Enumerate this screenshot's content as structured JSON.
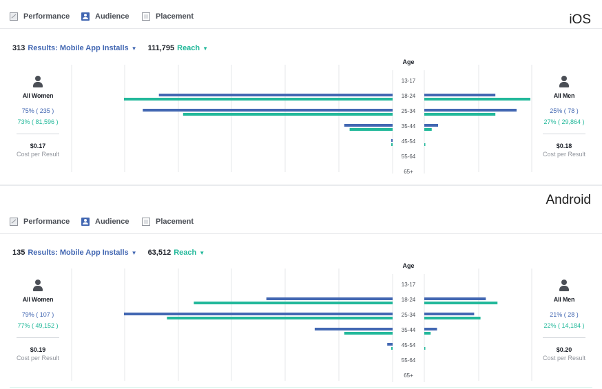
{
  "colors": {
    "results": "#4267b2",
    "reach": "#22b89a",
    "grid": "#e6e7ea"
  },
  "panels": [
    {
      "platform": "iOS",
      "tabs": [
        {
          "label": "Performance",
          "icon": "performance-icon"
        },
        {
          "label": "Audience",
          "icon": "audience-icon"
        },
        {
          "label": "Placement",
          "icon": "placement-icon"
        }
      ],
      "results_count": "313",
      "results_metric": "Results: Mobile App Installs",
      "reach_count": "111,795",
      "reach_metric": "Reach",
      "age_title": "Age",
      "age_groups": [
        "13-17",
        "18-24",
        "25-34",
        "35-44",
        "45-54",
        "55-64",
        "65+"
      ],
      "women": {
        "label": "All Women",
        "pct_results": "75% ( 235 )",
        "pct_reach": "73% ( 81,596 )",
        "cost": "$0.17",
        "cost_label": "Cost per Result"
      },
      "men": {
        "label": "All Men",
        "pct_results": "25% ( 78 )",
        "pct_reach": "27% ( 29,864 )",
        "cost": "$0.18",
        "cost_label": "Cost per Result"
      },
      "bars": {
        "women_results": [
          0,
          0.87,
          0.93,
          0.18,
          0.005,
          0,
          0
        ],
        "women_reach": [
          0,
          1.0,
          0.78,
          0.16,
          0.005,
          0,
          0
        ],
        "men_results": [
          0,
          0.67,
          0.87,
          0.13,
          0,
          0,
          0
        ],
        "men_reach": [
          0,
          1.0,
          0.67,
          0.07,
          0.005,
          0,
          0
        ]
      }
    },
    {
      "platform": "Android",
      "tabs": [
        {
          "label": "Performance",
          "icon": "performance-icon"
        },
        {
          "label": "Audience",
          "icon": "audience-icon"
        },
        {
          "label": "Placement",
          "icon": "placement-icon"
        }
      ],
      "results_count": "135",
      "results_metric": "Results: Mobile App Installs",
      "reach_count": "63,512",
      "reach_metric": "Reach",
      "age_title": "Age",
      "age_groups": [
        "13-17",
        "18-24",
        "25-34",
        "35-44",
        "45-54",
        "55-64",
        "65+"
      ],
      "women": {
        "label": "All Women",
        "pct_results": "79% ( 107 )",
        "pct_reach": "77% ( 49,152 )",
        "cost": "$0.19",
        "cost_label": "Cost per Result"
      },
      "men": {
        "label": "All Men",
        "pct_results": "21% ( 28 )",
        "pct_reach": "22% ( 14,184 )",
        "cost": "$0.20",
        "cost_label": "Cost per Result"
      },
      "bars": {
        "women_results": [
          0,
          0.47,
          1.0,
          0.29,
          0.02,
          0,
          0
        ],
        "women_reach": [
          0,
          0.74,
          0.84,
          0.18,
          0.005,
          0,
          0
        ],
        "men_results": [
          0,
          0.58,
          0.47,
          0.12,
          0,
          0,
          0
        ],
        "men_reach": [
          0,
          0.69,
          0.53,
          0.06,
          0.005,
          0,
          0
        ]
      }
    }
  ]
}
